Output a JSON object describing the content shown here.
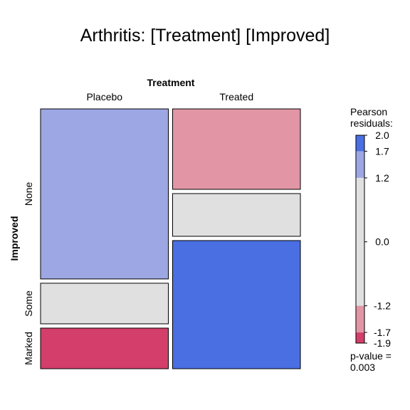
{
  "chart_data": {
    "type": "mosaic",
    "title": "Arthritis: [Treatment] [Improved]",
    "column_variable": "Treatment",
    "row_variable": "Improved",
    "columns": [
      {
        "name": "Placebo",
        "proportion": 0.5,
        "cells": [
          {
            "level": "None",
            "proportion": 0.67,
            "residual": 1.5,
            "color": "#9da7e3"
          },
          {
            "level": "Some",
            "proportion": 0.16,
            "residual": 0.0,
            "color": "#e0e0e0"
          },
          {
            "level": "Marked",
            "proportion": 0.16,
            "residual": -1.8,
            "color": "#d33f6a"
          }
        ]
      },
      {
        "name": "Treated",
        "proportion": 0.5,
        "cells": [
          {
            "level": "None",
            "proportion": 0.32,
            "residual": -1.4,
            "color": "#e296a5"
          },
          {
            "level": "Some",
            "proportion": 0.17,
            "residual": 0.0,
            "color": "#e0e0e0"
          },
          {
            "level": "Marked",
            "proportion": 0.51,
            "residual": 2.0,
            "color": "#4a6fe3"
          }
        ]
      }
    ],
    "legend": {
      "title_line1": "Pearson",
      "title_line2": "residuals:",
      "ticks": [
        "2.0",
        "1.7",
        "1.2",
        "0.0",
        "-1.2",
        "-1.7",
        "-1.9"
      ],
      "tick_values": [
        2.0,
        1.7,
        1.2,
        0.0,
        -1.2,
        -1.7,
        -1.9
      ],
      "range": [
        -1.9,
        2.0
      ],
      "bands": [
        {
          "from": 1.7,
          "to": 2.0,
          "color": "#4a6fe3"
        },
        {
          "from": 1.2,
          "to": 1.7,
          "color": "#9da7e3"
        },
        {
          "from": -1.2,
          "to": 1.2,
          "color": "#e0e0e0"
        },
        {
          "from": -1.7,
          "to": -1.2,
          "color": "#e296a5"
        },
        {
          "from": -1.9,
          "to": -1.7,
          "color": "#d33f6a"
        }
      ],
      "pvalue_line1": "p-value =",
      "pvalue_line2": "0.003"
    }
  }
}
